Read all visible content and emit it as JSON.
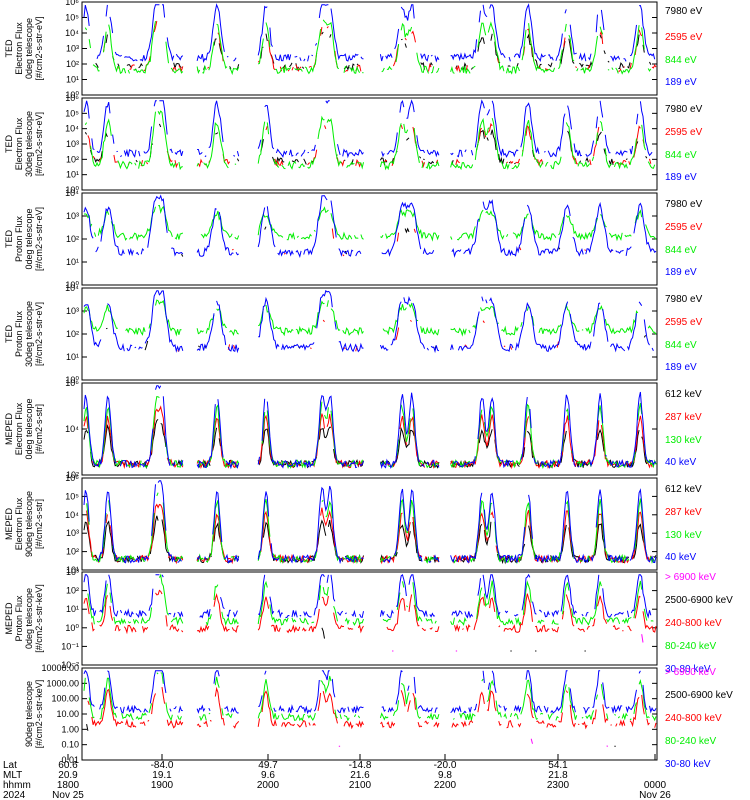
{
  "colors": {
    "blue": "#0000ff",
    "red": "#ff0000",
    "green": "#00ee00",
    "black": "#000000",
    "magenta": "#ff00ff"
  },
  "chart_data": [
    {
      "type": "line",
      "ylabel": [
        "TED",
        "Electron Flux",
        "0deg telescope",
        "[#/cm2-s-str-eV]"
      ],
      "ytick_labels": [
        "10⁰",
        "10¹",
        "10²",
        "10³",
        "10⁴",
        "10⁵",
        "10⁶"
      ],
      "ylim": [
        0,
        6
      ],
      "log_scale": true,
      "series": [
        {
          "name": "7980 eV",
          "color": "black"
        },
        {
          "name": "2595 eV",
          "color": "red"
        },
        {
          "name": "844 eV",
          "color": "green"
        },
        {
          "name": "189 eV",
          "color": "blue"
        }
      ]
    },
    {
      "type": "line",
      "ylabel": [
        "TED",
        "Electron Flux",
        "30deg telescope",
        "[#/cm2-s-str-eV]"
      ],
      "ytick_labels": [
        "10⁰",
        "10¹",
        "10²",
        "10³",
        "10⁴",
        "10⁵",
        "10⁶"
      ],
      "ylim": [
        0,
        6
      ],
      "log_scale": true,
      "series": [
        {
          "name": "7980 eV",
          "color": "black"
        },
        {
          "name": "2595 eV",
          "color": "red"
        },
        {
          "name": "844 eV",
          "color": "green"
        },
        {
          "name": "189 eV",
          "color": "blue"
        }
      ]
    },
    {
      "type": "line",
      "ylabel": [
        "TED",
        "Proton Flux",
        "0deg telescope",
        "[#/cm2-s-str-eV]"
      ],
      "ytick_labels": [
        "10⁰",
        "10¹",
        "10²",
        "10³",
        "10⁴"
      ],
      "ylim": [
        0,
        4
      ],
      "log_scale": true,
      "series": [
        {
          "name": "7980 eV",
          "color": "black"
        },
        {
          "name": "2595 eV",
          "color": "red"
        },
        {
          "name": "844 eV",
          "color": "green"
        },
        {
          "name": "189 eV",
          "color": "blue"
        }
      ]
    },
    {
      "type": "line",
      "ylabel": [
        "TED",
        "Proton Flux",
        "30deg telescope",
        "[#/cm2-s-str-eV]"
      ],
      "ytick_labels": [
        "10⁰",
        "10¹",
        "10²",
        "10³",
        "10⁴"
      ],
      "ylim": [
        0,
        4
      ],
      "log_scale": true,
      "series": [
        {
          "name": "7980 eV",
          "color": "black"
        },
        {
          "name": "2595 eV",
          "color": "red"
        },
        {
          "name": "844 eV",
          "color": "green"
        },
        {
          "name": "189 eV",
          "color": "blue"
        }
      ]
    },
    {
      "type": "line",
      "ylabel": [
        "MEPED",
        "Electron Flux",
        "0deg telescope",
        "[#/cm2-s-str]"
      ],
      "ytick_labels": [
        "10²",
        "10⁴",
        "10⁶"
      ],
      "ylim": [
        1,
        7
      ],
      "log_scale": true,
      "series": [
        {
          "name": "612 keV",
          "color": "black"
        },
        {
          "name": "287 keV",
          "color": "red"
        },
        {
          "name": "130 keV",
          "color": "green"
        },
        {
          "name": "40 keV",
          "color": "blue"
        }
      ]
    },
    {
      "type": "line",
      "ylabel": [
        "MEPED",
        "Electron Flux",
        "90deg telescope",
        "[#/cm2-s-str]"
      ],
      "ytick_labels": [
        "10¹",
        "10²",
        "10³",
        "10⁴",
        "10⁵",
        "10⁶"
      ],
      "ylim": [
        1,
        6
      ],
      "log_scale": true,
      "series": [
        {
          "name": "612 keV",
          "color": "black"
        },
        {
          "name": "287 keV",
          "color": "red"
        },
        {
          "name": "130 keV",
          "color": "green"
        },
        {
          "name": "40 keV",
          "color": "blue"
        }
      ]
    },
    {
      "type": "line",
      "ylabel": [
        "MEPED",
        "Proton Flux",
        "0deg telescope",
        "[#/cm2-s-str-keV]"
      ],
      "ytick_labels": [
        "10⁻²",
        "10⁻¹",
        "10⁰",
        "10¹",
        "10²",
        "10³"
      ],
      "ylim": [
        -2,
        4
      ],
      "log_scale": true,
      "series": [
        {
          "name": "> 6900 keV",
          "color": "magenta"
        },
        {
          "name": "2500-6900 keV",
          "color": "black"
        },
        {
          "name": "240-800 keV",
          "color": "red"
        },
        {
          "name": "80-240 keV",
          "color": "green"
        },
        {
          "name": "30-80 keV",
          "color": "blue"
        }
      ]
    },
    {
      "type": "line",
      "ylabel": [
        "90deg telescope",
        "[#/cm2-s-str-keV]"
      ],
      "ytick_labels": [
        "0.01",
        "0.10",
        "1.00",
        "10.00",
        "100.00",
        "1000.00",
        "10000.00"
      ],
      "ylim": [
        -2,
        4
      ],
      "log_scale": true,
      "series": [
        {
          "name": "> 6900 keV",
          "color": "magenta"
        },
        {
          "name": "2500-6900 keV",
          "color": "black"
        },
        {
          "name": "240-800 keV",
          "color": "red"
        },
        {
          "name": "80-240 keV",
          "color": "green"
        },
        {
          "name": "30-80 keV",
          "color": "blue"
        }
      ]
    }
  ],
  "x_axis": {
    "row_labels": [
      "Lat",
      "MLT",
      "hhmm",
      "2024"
    ],
    "columns": [
      {
        "lat": "60.6",
        "mlt": "20.9",
        "hhmm": "1800",
        "date": "Nov 25"
      },
      {
        "lat": "-84.0",
        "mlt": "19.1",
        "hhmm": "1900",
        "date": ""
      },
      {
        "lat": "49.7",
        "mlt": "9.6",
        "hhmm": "2000",
        "date": ""
      },
      {
        "lat": "-14.8",
        "mlt": "21.6",
        "hhmm": "2100",
        "date": ""
      },
      {
        "lat": "-20.0",
        "mlt": "9.8",
        "hhmm": "2200",
        "date": ""
      },
      {
        "lat": "54.1",
        "mlt": "21.8",
        "hhmm": "2300",
        "date": ""
      },
      {
        "lat": "",
        "mlt": "",
        "hhmm": "0000",
        "date": "Nov 26"
      }
    ]
  }
}
